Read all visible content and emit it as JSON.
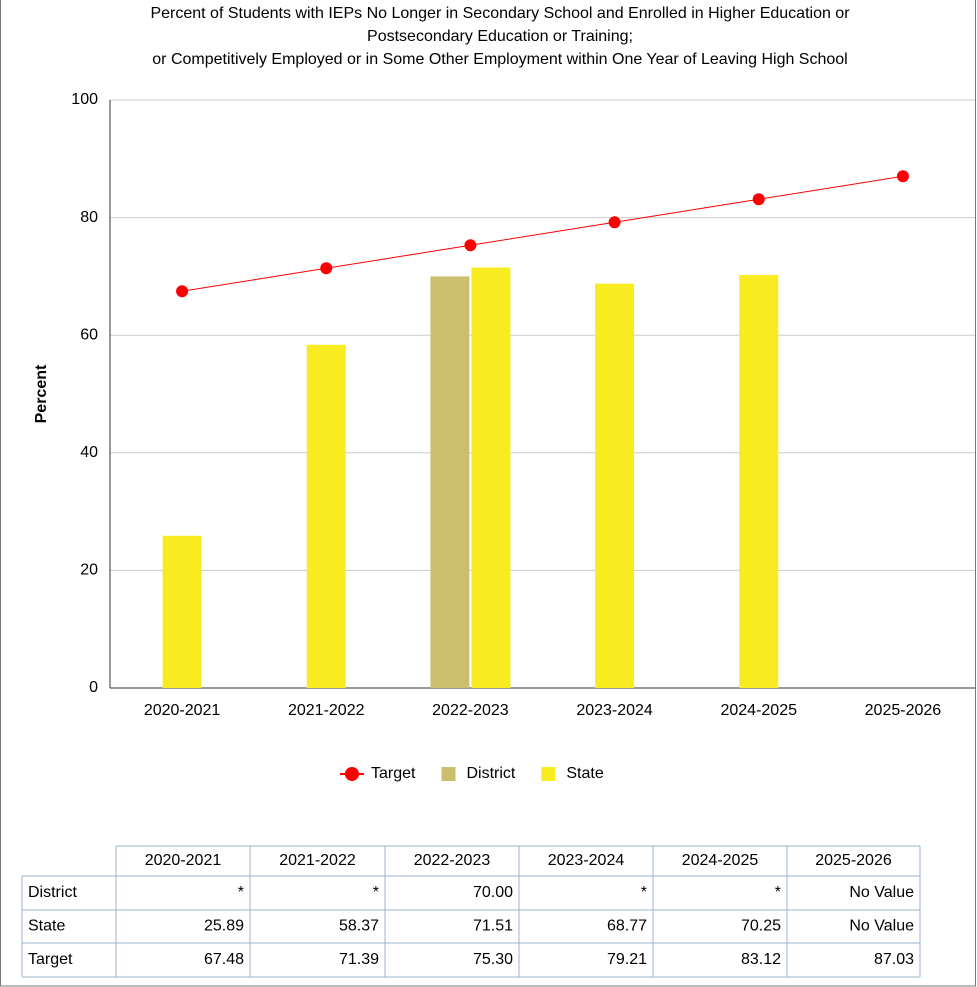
{
  "chart_data": {
    "type": "bar",
    "title": [
      "Percent of Students with IEPs No Longer in Secondary School and Enrolled in Higher Education or",
      "Postsecondary Education or Training;",
      "or Competitively Employed or in Some Other Employment within One Year of Leaving High School"
    ],
    "y_label": "Percent",
    "categories": [
      "2020-2021",
      "2021-2022",
      "2022-2023",
      "2023-2024",
      "2024-2025",
      "2025-2026"
    ],
    "series": [
      {
        "name": "Target",
        "type": "line",
        "color": "#ff0000",
        "values": [
          67.48,
          71.39,
          75.3,
          79.21,
          83.12,
          87.03
        ],
        "value_labels": [
          "67.48",
          "71.39",
          "75.30",
          "79.21",
          "83.12",
          "87.03"
        ]
      },
      {
        "name": "District",
        "type": "bar",
        "color": "#cbbf6e",
        "values": [
          null,
          null,
          70.0,
          null,
          null,
          null
        ],
        "value_labels": [
          "*",
          "*",
          "70.00",
          "*",
          "*",
          "No Value"
        ]
      },
      {
        "name": "State",
        "type": "bar",
        "color": "#f8ec20",
        "values": [
          25.89,
          58.37,
          71.51,
          68.77,
          70.25,
          null
        ],
        "value_labels": [
          "25.89",
          "58.37",
          "71.51",
          "68.77",
          "70.25",
          "No Value"
        ]
      }
    ],
    "ylim": [
      0,
      100
    ],
    "yticks": [
      0,
      20,
      40,
      60,
      80,
      100
    ],
    "grid": true,
    "legend": "bottom",
    "table_order": [
      1,
      2,
      0
    ]
  }
}
